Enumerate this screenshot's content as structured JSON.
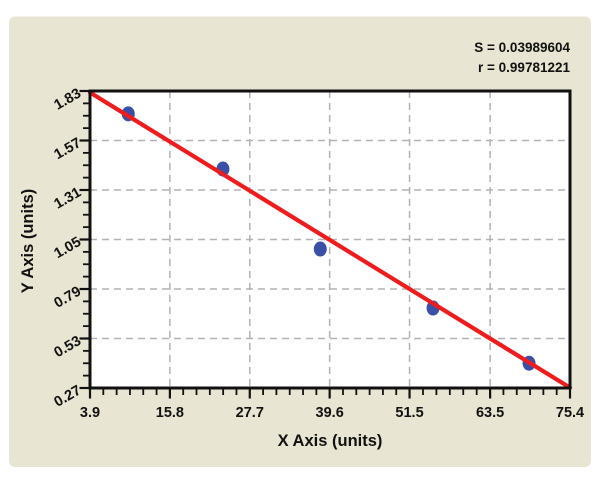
{
  "chart_data": {
    "type": "scatter",
    "title": "",
    "xlabel": "X Axis (units)",
    "ylabel": "Y Axis (units)",
    "stats": {
      "s_label": "S = 0.03989604",
      "r_label": "r = 0.99781221"
    },
    "xlim": [
      3.9,
      75.4
    ],
    "ylim": [
      0.27,
      1.83
    ],
    "x_ticks": [
      3.9,
      15.8,
      27.7,
      39.6,
      51.5,
      63.5,
      75.4
    ],
    "x_tick_labels": [
      "3.9",
      "15.8",
      "27.7",
      "39.6",
      "51.5",
      "63.5",
      "75.4"
    ],
    "y_ticks": [
      0.27,
      0.53,
      0.79,
      1.05,
      1.31,
      1.57,
      1.83
    ],
    "y_tick_labels": [
      "0.27",
      "0.53",
      "0.79",
      "1.05",
      "1.31",
      "1.57",
      "1.83"
    ],
    "minor_divisions_x": 6,
    "minor_divisions_y": 4,
    "grid": "dashed gray lines at interior major ticks, both axes",
    "legend": null,
    "points": [
      {
        "x": 9.6,
        "y": 1.71
      },
      {
        "x": 23.7,
        "y": 1.42
      },
      {
        "x": 38.2,
        "y": 1.0
      },
      {
        "x": 55.0,
        "y": 0.69
      },
      {
        "x": 69.3,
        "y": 0.4
      }
    ],
    "fit_line": {
      "x": [
        3.9,
        75.4
      ],
      "y": [
        1.822,
        0.272
      ]
    },
    "colors": {
      "panel_bg": "#e8e5d2",
      "plot_bg": "#ffffff",
      "axis": "#111111",
      "grid": "#b2b2b2",
      "point_fill": "#3a50a6",
      "line": "#ee1c1c",
      "text": "#111111"
    }
  }
}
